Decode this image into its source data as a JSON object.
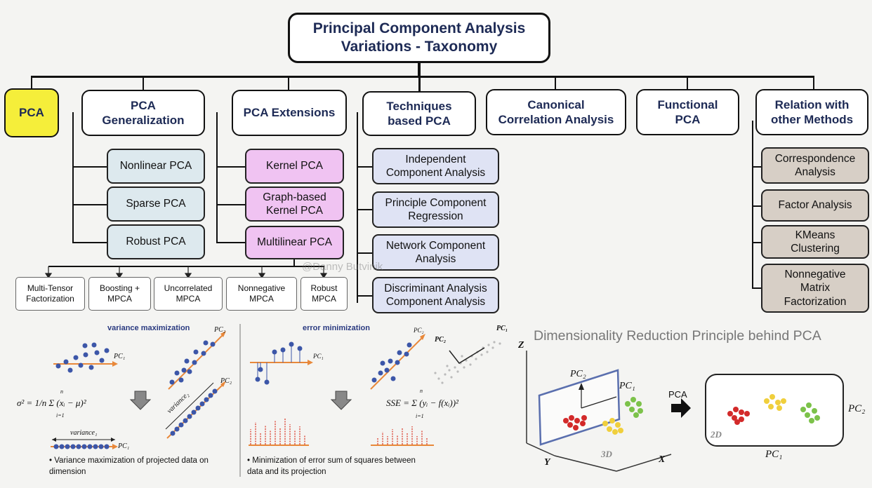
{
  "title": "Principal Component Analysis\nVariations - Taxonomy",
  "categories": {
    "pca": "PCA",
    "generalization": "PCA\nGeneralization",
    "extensions": "PCA Extensions",
    "techniques": "Techniques\nbased PCA",
    "canonical": "Canonical\nCorrelation Analysis",
    "functional": "Functional\nPCA",
    "relation": "Relation with\nother Methods"
  },
  "generalization_items": [
    "Nonlinear PCA",
    "Sparse PCA",
    "Robust PCA"
  ],
  "extension_items": [
    "Kernel PCA",
    "Graph-based\nKernel PCA",
    "Multilinear PCA"
  ],
  "multilinear_children": [
    "Multi-Tensor\nFactorization",
    "Boosting +\nMPCA",
    "Uncorrelated\nMPCA",
    "Nonnegative\nMPCA",
    "Robust\nMPCA"
  ],
  "technique_items": [
    "Independent\nComponent Analysis",
    "Principle Component\nRegression",
    "Network Component\nAnalysis",
    "Discriminant Analysis\nComponent Analysis"
  ],
  "relation_items": [
    "Correspondence\nAnalysis",
    "Factor Analysis",
    "KMeans\nClustering",
    "Nonnegative\nMatrix\nFactorization"
  ],
  "watermark": "@Danny Butvinik",
  "variance_panel": {
    "heading": "variance maximization",
    "formula": "σ² = 1/n Σ (xᵢ − μ)²",
    "formula_sum_top": "n",
    "formula_sum_bottom": "i=1",
    "pc1_label": "PC₁",
    "pc2_label": "PC₂",
    "variance_label": "variance₁",
    "variance2_label": "variance₂",
    "bullet": "Variance maximization of projected data on\ndimension"
  },
  "error_panel": {
    "heading": "error minimization",
    "formula": "SSE = Σ (yᵢ − f(xᵢ))²",
    "formula_sum_top": "n",
    "formula_sum_bottom": "i=1",
    "pc1_label": "PC₁",
    "pc2_label": "PC₂",
    "bullet": "Minimization of error sum of squares between\ndata and its projection"
  },
  "dimred": {
    "heading": "Dimensionality Reduction Principle behind PCA",
    "z": "Z",
    "y": "Y",
    "x": "X",
    "three_d": "3D",
    "two_d": "2D",
    "pca_arrow": "PCA",
    "pc1": "PC₁",
    "pc2": "PC₂"
  },
  "colors": {
    "highlight": "#f5ee3a",
    "light_blue": "#dde9ee",
    "pink": "#f0c3f2",
    "lavender": "#dfe3f4",
    "tan": "#d7cfc6",
    "title_text": "#1d2a55",
    "dots": "#3c56a8",
    "arrow": "#e8883a"
  }
}
